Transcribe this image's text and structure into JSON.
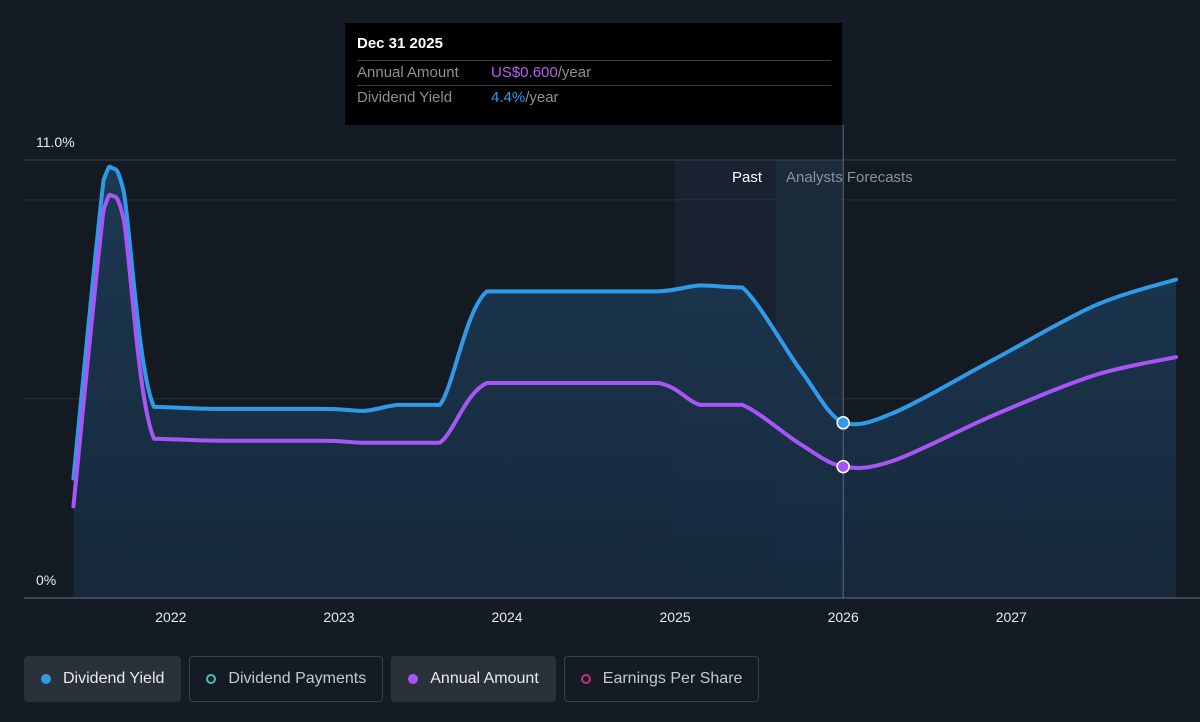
{
  "tooltip": {
    "date": "Dec 31 2025",
    "rows": [
      {
        "label": "Annual Amount",
        "value": "US$0.600",
        "unit": "/year"
      },
      {
        "label": "Dividend Yield",
        "value": "4.4%",
        "unit": "/year"
      }
    ]
  },
  "region_labels": {
    "past": "Past",
    "forecast": "Analysts Forecasts"
  },
  "legend": [
    {
      "label": "Dividend Yield",
      "color": "#2f9be8",
      "style": "filled-dot"
    },
    {
      "label": "Dividend Payments",
      "color": "#38c7b5",
      "style": "ring"
    },
    {
      "label": "Annual Amount",
      "color": "#a855f7",
      "style": "filled-dot"
    },
    {
      "label": "Earnings Per Share",
      "color": "#c2307a",
      "style": "ring"
    }
  ],
  "colors": {
    "background": "#151b24",
    "dividend_yield": "#2f9be8",
    "annual_amount": "#a855f7"
  },
  "chart_data": {
    "type": "line",
    "y_tick_labels": [
      "11.0%",
      "0%"
    ],
    "ylim": [
      0,
      11.0
    ],
    "xlim": [
      2021.4,
      2027.98
    ],
    "x_tick_labels": [
      "2022",
      "2023",
      "2024",
      "2025",
      "2026",
      "2027"
    ],
    "x_ticks": [
      2022,
      2023,
      2024,
      2025,
      2026,
      2027
    ],
    "past_forecast_divider": 2026.0,
    "past_shaded_from": 2025.0,
    "forecast_shaded_from": 2025.6,
    "series": [
      {
        "name": "Dividend Yield",
        "unit": "%",
        "x": [
          2021.42,
          2021.6,
          2021.65,
          2021.72,
          2021.9,
          2022.3,
          2022.9,
          2023.15,
          2023.35,
          2023.6,
          2023.88,
          2024.4,
          2024.9,
          2025.15,
          2025.4,
          2025.75,
          2026.0,
          2026.3,
          2026.9,
          2027.5,
          2027.98
        ],
        "y": [
          3.0,
          10.5,
          10.8,
          10.2,
          4.8,
          4.75,
          4.75,
          4.7,
          4.85,
          4.85,
          7.7,
          7.7,
          7.7,
          7.85,
          7.8,
          5.7,
          4.4,
          4.65,
          6.0,
          7.35,
          8.0
        ]
      },
      {
        "name": "Annual Amount",
        "unit": "%",
        "x": [
          2021.42,
          2021.6,
          2021.65,
          2021.72,
          2021.9,
          2022.3,
          2022.9,
          2023.15,
          2023.35,
          2023.6,
          2023.88,
          2024.4,
          2024.9,
          2025.15,
          2025.4,
          2025.75,
          2026.0,
          2026.3,
          2026.9,
          2027.5,
          2027.98
        ],
        "y": [
          2.3,
          9.75,
          10.1,
          9.5,
          4.0,
          3.95,
          3.95,
          3.9,
          3.9,
          3.9,
          5.4,
          5.4,
          5.4,
          4.85,
          4.85,
          3.85,
          3.3,
          3.45,
          4.6,
          5.6,
          6.05
        ]
      }
    ],
    "highlight": {
      "x": 2026.0,
      "dividend_yield": 4.4,
      "annual_amount": 3.3
    }
  }
}
